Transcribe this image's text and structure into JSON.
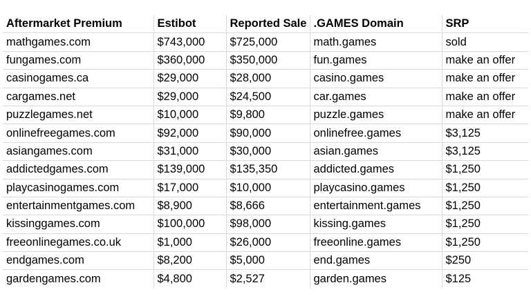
{
  "table": {
    "headers": [
      "Aftermarket Premium",
      "Estibot",
      "Reported Sale",
      ".GAMES Domain",
      "SRP"
    ],
    "rows": [
      [
        "mathgames.com",
        "$743,000",
        "$725,000",
        "math.games",
        "sold"
      ],
      [
        "fungames.com",
        "$360,000",
        "$350,000",
        "fun.games",
        "make an offer"
      ],
      [
        "casinogames.ca",
        "$29,000",
        "$28,000",
        "casino.games",
        "make an offer"
      ],
      [
        "cargames.net",
        "$29,000",
        "$24,500",
        "car.games",
        "make an offer"
      ],
      [
        "puzzlegames.net",
        "$10,000",
        "$9,800",
        "puzzle.games",
        "make an offer"
      ],
      [
        "onlinefreegames.com",
        "$92,000",
        "$90,000",
        "onlinefree.games",
        "$3,125"
      ],
      [
        "asiangames.com",
        "$31,000",
        "$30,000",
        "asian.games",
        "$3,125"
      ],
      [
        "addictedgames.com",
        "$139,000",
        "$135,350",
        "addicted.games",
        "$1,250"
      ],
      [
        "playcasinogames.com",
        "$17,000",
        "$10,000",
        "playcasino.games",
        "$1,250"
      ],
      [
        "entertainmentgames.com",
        "$8,900",
        "$8,666",
        "entertainment.games",
        "$1,250"
      ],
      [
        "kissinggames.com",
        "$100,000",
        "$98,000",
        "kissing.games",
        "$1,250"
      ],
      [
        "freeonlinegames.co.uk",
        "$1,000",
        "$26,000",
        "freeonline.games",
        "$1,250"
      ],
      [
        "endgames.com",
        "$8,200",
        "$5,000",
        "end.games",
        "$250"
      ],
      [
        "gardengames.com",
        "$4,800",
        "$2,527",
        "garden.games",
        "$125"
      ]
    ]
  }
}
